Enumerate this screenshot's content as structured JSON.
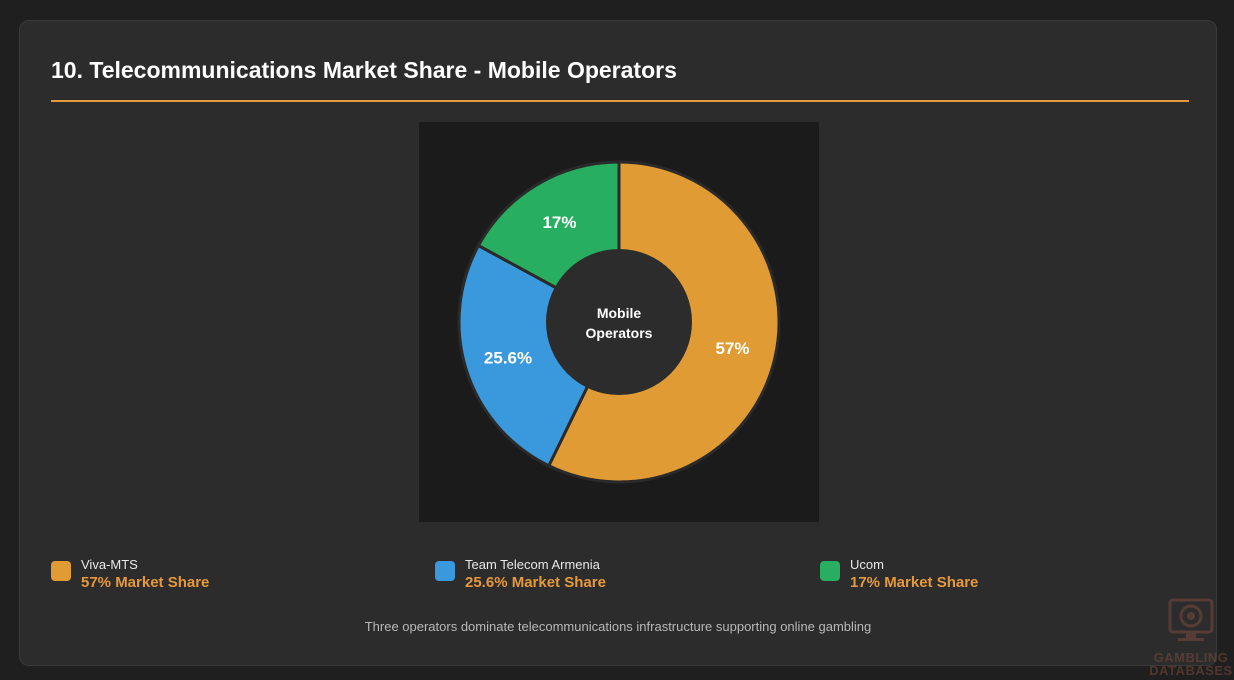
{
  "title": "10. Telecommunications Market Share - Mobile Operators",
  "footnote": "Three operators dominate telecommunications infrastructure supporting online gambling",
  "watermark": {
    "line1": "GAMBLING",
    "line2": "DATABASES",
    "icon": "casino-chip-monitor-icon"
  },
  "colors": {
    "accent": "#e6993b",
    "viva_mts": "#e09b34",
    "team_telecom": "#3a99dc",
    "ucom": "#27ae60",
    "background": "#1f1f1f",
    "card": "#2c2c2c",
    "chart_background": "#1b1b1b",
    "donut_hole": "#2c2c2c"
  },
  "chart_data": {
    "type": "pie",
    "donut": true,
    "center_label": [
      "Mobile",
      "Operators"
    ],
    "categories": [
      "Viva-MTS",
      "Team Telecom Armenia",
      "Ucom"
    ],
    "values": [
      57,
      25.6,
      17
    ],
    "slice_labels": [
      "57%",
      "25.6%",
      "17%"
    ],
    "colors": [
      "#e09b34",
      "#3a99dc",
      "#27ae60"
    ],
    "start_angle_deg": 0,
    "direction": "clockwise",
    "legend_position": "bottom"
  },
  "legend": [
    {
      "name": "Viva-MTS",
      "share": "57% Market Share",
      "color": "#e09b34"
    },
    {
      "name": "Team Telecom Armenia",
      "share": "25.6% Market Share",
      "color": "#3a99dc"
    },
    {
      "name": "Ucom",
      "share": "17% Market Share",
      "color": "#27ae60"
    }
  ]
}
